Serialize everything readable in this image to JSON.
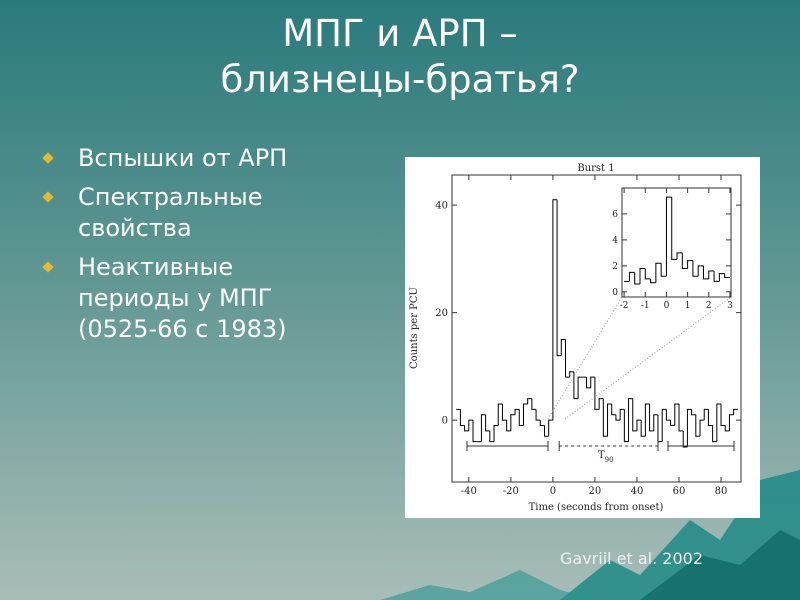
{
  "slide": {
    "title_lines": [
      "МПГ и АРП –",
      "близнецы-братья?"
    ],
    "bullets": [
      "Вспышки от АРП",
      "Спектральные свойства",
      "Неактивные периоды у МПГ (0525-66 с 1983)"
    ],
    "citation": "Gavriil et al. 2002"
  },
  "chart_data": {
    "type": "histogram",
    "title": "Burst 1",
    "x_label": "Time (seconds from onset)",
    "y_label": "Counts per PCU",
    "xlim": [
      -48,
      89.5
    ],
    "ylim": [
      -11.5,
      45.6
    ],
    "xticks": [
      -40,
      -20,
      0,
      20,
      40,
      60,
      80
    ],
    "yticks": [
      0,
      20,
      40
    ],
    "color": "#000000",
    "bins": [
      -46,
      -44,
      -42,
      -40,
      -38,
      -36,
      -34,
      -32,
      -30,
      -28,
      -26,
      -24,
      -22,
      -20,
      -18,
      -16,
      -14,
      -12,
      -10,
      -8,
      -6,
      -4,
      -2,
      0,
      2,
      4,
      6,
      8,
      10,
      12,
      14,
      16,
      18,
      20,
      22,
      24,
      26,
      28,
      30,
      32,
      34,
      36,
      38,
      40,
      42,
      44,
      46,
      48,
      50,
      52,
      54,
      56,
      58,
      60,
      62,
      64,
      66,
      68,
      70,
      72,
      74,
      76,
      78,
      80,
      82,
      84,
      86,
      88
    ],
    "values": [
      2,
      -1,
      -2,
      0,
      -4,
      -4,
      1,
      -2,
      -4,
      -1,
      3,
      0,
      -2,
      1,
      2,
      -1,
      3,
      4,
      2,
      0,
      -1,
      -3,
      0,
      41,
      12,
      15,
      8,
      9,
      4,
      8,
      8,
      6,
      8,
      2,
      4,
      -3,
      3,
      1,
      0,
      2,
      -4,
      4,
      -2,
      0,
      -3,
      3,
      -2,
      1,
      -4,
      2,
      0,
      -1,
      3,
      -2,
      -5,
      2,
      1,
      -3,
      0,
      2,
      -1,
      -4,
      3,
      -1,
      -2,
      1,
      2
    ],
    "t90": [
      3,
      50
    ],
    "t90_label": "T",
    "t90_subscript": "90",
    "inset": {
      "type": "histogram",
      "xlim": [
        -2.1,
        3.05
      ],
      "ylim": [
        -0.4,
        8
      ],
      "xticks": [
        -2,
        -1,
        0,
        1,
        2,
        3
      ],
      "yticks": [
        0,
        2,
        4,
        6
      ],
      "bins": [
        -2,
        -1.75,
        -1.5,
        -1.25,
        -1,
        -0.75,
        -0.5,
        -0.25,
        0,
        0.25,
        0.5,
        0.75,
        1,
        1.25,
        1.5,
        1.75,
        2,
        2.25,
        2.5,
        2.75,
        3
      ],
      "values": [
        0.8,
        1.5,
        0.6,
        1.8,
        1,
        0.7,
        2.2,
        1.2,
        7.3,
        2.5,
        3,
        1.8,
        2.4,
        1.2,
        2,
        1,
        1.6,
        0.8,
        1.4,
        1.1
      ]
    }
  }
}
